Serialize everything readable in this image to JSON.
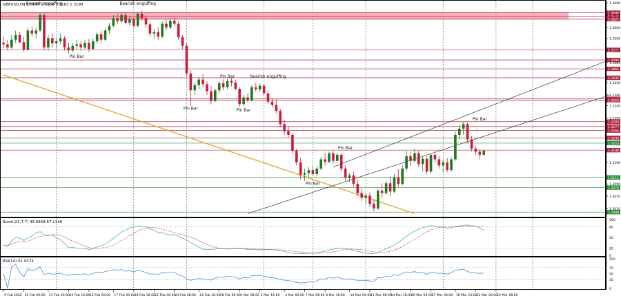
{
  "header": {
    "symbol_info": "GBPUSD,H4  1.3183 1.3203 1.3183 1.3198",
    "stoch_label": "Stoch(21,7,7) 45.0658 67.1146",
    "rsi_label": "RSI(14) 51.9374"
  },
  "colors": {
    "candle_up": "#1f7a1f",
    "candle_down": "#c81e3c",
    "trendline": "#e8a020",
    "channel": "#333333",
    "resistance_zone": "#f4a3b4",
    "stoch_main": "#5fb8b0",
    "stoch_signal": "#d04060",
    "rsi": "#4a8fd8"
  },
  "chart_data": {
    "type": "candlestick",
    "symbol": "GBPUSD",
    "timeframe": "H4",
    "ylim": [
      1.2985,
      1.3685
    ],
    "candles_ohlc": [
      [
        1.355,
        1.357,
        1.3535,
        1.3545
      ],
      [
        1.3545,
        1.356,
        1.3525,
        1.3535
      ],
      [
        1.3535,
        1.3575,
        1.353,
        1.356
      ],
      [
        1.356,
        1.359,
        1.355,
        1.3575
      ],
      [
        1.3575,
        1.3585,
        1.3548,
        1.3552
      ],
      [
        1.3552,
        1.357,
        1.352,
        1.3528
      ],
      [
        1.3528,
        1.36,
        1.3525,
        1.359
      ],
      [
        1.359,
        1.3605,
        1.357,
        1.358
      ],
      [
        1.358,
        1.36,
        1.3565,
        1.359
      ],
      [
        1.359,
        1.365,
        1.3585,
        1.364
      ],
      [
        1.364,
        1.3648,
        1.3525,
        1.3535
      ],
      [
        1.3535,
        1.3575,
        1.3525,
        1.3565
      ],
      [
        1.3565,
        1.358,
        1.3535,
        1.3548
      ],
      [
        1.3548,
        1.3565,
        1.3535,
        1.3555
      ],
      [
        1.3555,
        1.358,
        1.3545,
        1.3565
      ],
      [
        1.3565,
        1.3572,
        1.3525,
        1.3535
      ],
      [
        1.3535,
        1.355,
        1.3515,
        1.3525
      ],
      [
        1.3525,
        1.355,
        1.352,
        1.354
      ],
      [
        1.354,
        1.356,
        1.353,
        1.3545
      ],
      [
        1.3545,
        1.3555,
        1.3525,
        1.3535
      ],
      [
        1.3535,
        1.356,
        1.353,
        1.355
      ],
      [
        1.355,
        1.3562,
        1.352,
        1.353
      ],
      [
        1.353,
        1.3565,
        1.3525,
        1.3555
      ],
      [
        1.3555,
        1.3585,
        1.3548,
        1.3578
      ],
      [
        1.3578,
        1.359,
        1.355,
        1.356
      ],
      [
        1.356,
        1.3598,
        1.3555,
        1.359
      ],
      [
        1.359,
        1.3615,
        1.358,
        1.3605
      ],
      [
        1.3605,
        1.364,
        1.36,
        1.363
      ],
      [
        1.363,
        1.3645,
        1.361,
        1.362
      ],
      [
        1.362,
        1.365,
        1.3615,
        1.364
      ],
      [
        1.364,
        1.3648,
        1.361,
        1.3615
      ],
      [
        1.3615,
        1.3635,
        1.3605,
        1.3628
      ],
      [
        1.3628,
        1.3632,
        1.36,
        1.3605
      ],
      [
        1.3605,
        1.365,
        1.36,
        1.3645
      ],
      [
        1.3645,
        1.3655,
        1.362,
        1.363
      ],
      [
        1.363,
        1.364,
        1.36,
        1.361
      ],
      [
        1.361,
        1.3618,
        1.357,
        1.358
      ],
      [
        1.358,
        1.3595,
        1.3565,
        1.3585
      ],
      [
        1.3585,
        1.36,
        1.356,
        1.357
      ],
      [
        1.357,
        1.362,
        1.3565,
        1.3612
      ],
      [
        1.3612,
        1.3625,
        1.359,
        1.36
      ],
      [
        1.36,
        1.363,
        1.3595,
        1.3622
      ],
      [
        1.3622,
        1.3632,
        1.3605,
        1.3612
      ],
      [
        1.3612,
        1.362,
        1.356,
        1.3568
      ],
      [
        1.3568,
        1.3575,
        1.353,
        1.354
      ],
      [
        1.354,
        1.3548,
        1.344,
        1.345
      ],
      [
        1.345,
        1.346,
        1.3345,
        1.3395
      ],
      [
        1.3395,
        1.342,
        1.338,
        1.3412
      ],
      [
        1.3412,
        1.344,
        1.34,
        1.343
      ],
      [
        1.343,
        1.3448,
        1.3405,
        1.3415
      ],
      [
        1.3415,
        1.3425,
        1.338,
        1.3392
      ],
      [
        1.3392,
        1.341,
        1.335,
        1.336
      ],
      [
        1.336,
        1.34,
        1.3355,
        1.3395
      ],
      [
        1.3395,
        1.3425,
        1.3385,
        1.3418
      ],
      [
        1.3418,
        1.343,
        1.3395,
        1.3405
      ],
      [
        1.3405,
        1.3432,
        1.3398,
        1.3425
      ],
      [
        1.3425,
        1.3435,
        1.3408,
        1.342
      ],
      [
        1.342,
        1.3428,
        1.3395,
        1.34
      ],
      [
        1.34,
        1.3405,
        1.334,
        1.335
      ],
      [
        1.335,
        1.338,
        1.3345,
        1.3372
      ],
      [
        1.3372,
        1.3385,
        1.3355,
        1.3362
      ],
      [
        1.3362,
        1.3412,
        1.3358,
        1.3405
      ],
      [
        1.3405,
        1.342,
        1.339,
        1.3398
      ],
      [
        1.3398,
        1.3418,
        1.339,
        1.341
      ],
      [
        1.341,
        1.3415,
        1.338,
        1.3385
      ],
      [
        1.3385,
        1.3395,
        1.335,
        1.3358
      ],
      [
        1.3358,
        1.337,
        1.334,
        1.3348
      ],
      [
        1.3348,
        1.3365,
        1.332,
        1.3328
      ],
      [
        1.3328,
        1.3335,
        1.3275,
        1.3285
      ],
      [
        1.3285,
        1.3298,
        1.325,
        1.3262
      ],
      [
        1.3262,
        1.3278,
        1.324,
        1.325
      ],
      [
        1.325,
        1.3255,
        1.319,
        1.3198
      ],
      [
        1.3198,
        1.3205,
        1.315,
        1.316
      ],
      [
        1.316,
        1.3175,
        1.3105,
        1.312
      ],
      [
        1.312,
        1.314,
        1.31,
        1.3125
      ],
      [
        1.3125,
        1.3145,
        1.311,
        1.3135
      ],
      [
        1.3135,
        1.315,
        1.3115,
        1.3122
      ],
      [
        1.3122,
        1.3148,
        1.3115,
        1.314
      ],
      [
        1.314,
        1.3178,
        1.3135,
        1.317
      ],
      [
        1.317,
        1.3188,
        1.315,
        1.3162
      ],
      [
        1.3162,
        1.3195,
        1.3158,
        1.319
      ],
      [
        1.319,
        1.3198,
        1.3155,
        1.3165
      ],
      [
        1.3165,
        1.3192,
        1.316,
        1.3185
      ],
      [
        1.3185,
        1.319,
        1.313,
        1.314
      ],
      [
        1.314,
        1.315,
        1.31,
        1.311
      ],
      [
        1.311,
        1.3125,
        1.3095,
        1.3118
      ],
      [
        1.3118,
        1.313,
        1.308,
        1.309
      ],
      [
        1.309,
        1.3102,
        1.305,
        1.306
      ],
      [
        1.306,
        1.3075,
        1.3035,
        1.3045
      ],
      [
        1.3045,
        1.306,
        1.3025,
        1.3052
      ],
      [
        1.3052,
        1.3062,
        1.3015,
        1.3025
      ],
      [
        1.3025,
        1.304,
        1.3,
        1.301
      ],
      [
        1.301,
        1.3075,
        1.3005,
        1.3068
      ],
      [
        1.3068,
        1.3092,
        1.3045,
        1.306
      ],
      [
        1.306,
        1.31,
        1.3055,
        1.3092
      ],
      [
        1.3092,
        1.3115,
        1.305,
        1.3065
      ],
      [
        1.3065,
        1.3122,
        1.306,
        1.3112
      ],
      [
        1.3112,
        1.3138,
        1.308,
        1.309
      ],
      [
        1.309,
        1.315,
        1.3085,
        1.314
      ],
      [
        1.314,
        1.3198,
        1.313,
        1.318
      ],
      [
        1.318,
        1.3195,
        1.315,
        1.3165
      ],
      [
        1.3165,
        1.3205,
        1.316,
        1.319
      ],
      [
        1.319,
        1.3198,
        1.3145,
        1.3155
      ],
      [
        1.3155,
        1.3182,
        1.313,
        1.3172
      ],
      [
        1.3172,
        1.318,
        1.312,
        1.313
      ],
      [
        1.313,
        1.319,
        1.3125,
        1.3185
      ],
      [
        1.3185,
        1.3195,
        1.316,
        1.317
      ],
      [
        1.317,
        1.318,
        1.314,
        1.315
      ],
      [
        1.315,
        1.317,
        1.313,
        1.316
      ],
      [
        1.316,
        1.3175,
        1.3128,
        1.3135
      ],
      [
        1.3135,
        1.3178,
        1.313,
        1.317
      ],
      [
        1.317,
        1.326,
        1.3165,
        1.325
      ],
      [
        1.325,
        1.3282,
        1.3235,
        1.327
      ],
      [
        1.327,
        1.3292,
        1.325,
        1.3285
      ],
      [
        1.3285,
        1.329,
        1.3225,
        1.3235
      ],
      [
        1.3235,
        1.3245,
        1.3195,
        1.3205
      ],
      [
        1.3205,
        1.3215,
        1.3185,
        1.3195
      ],
      [
        1.3195,
        1.3205,
        1.317,
        1.3185
      ],
      [
        1.3185,
        1.3203,
        1.3183,
        1.3198
      ]
    ],
    "levels": [
      {
        "value": 1.3648,
        "label": "1.3648"
      },
      {
        "value": 1.3637,
        "label": "1.3637"
      },
      {
        "value": 1.3627,
        "label": "1.3627"
      },
      {
        "value": 1.3527,
        "label": "1.3527"
      },
      {
        "value": 1.3494,
        "label": "1.3494"
      },
      {
        "value": 1.3465,
        "label": "1.3465"
      },
      {
        "value": 1.3436,
        "label": "1.3436"
      },
      {
        "value": 1.3367,
        "label": "1.3367"
      },
      {
        "value": 1.3363,
        "label": "1.3363"
      },
      {
        "value": 1.3293,
        "label": "1.3293"
      },
      {
        "value": 1.3277,
        "label": "1.3277"
      },
      {
        "value": 1.3264,
        "label": "1.3264"
      },
      {
        "value": 1.324,
        "label": "1.3240"
      },
      {
        "value": 1.3223,
        "label": "1.3223"
      },
      {
        "value": 1.32,
        "label": "1.3198"
      },
      {
        "value": 1.3111,
        "label": "1.3111"
      },
      {
        "value": 1.3078,
        "label": "1.3078"
      },
      {
        "value": 1.2998,
        "label": "1.2998"
      }
    ],
    "green_levels": [
      1.3223,
      1.3198,
      1.3111,
      1.3078,
      1.2998
    ],
    "resistance_zone": [
      1.3627,
      1.365
    ],
    "axis_ticks": [
      {
        "value": 1.368,
        "label": "1.3680"
      },
      {
        "value": 1.364,
        "label": "1.3640"
      },
      {
        "value": 1.36,
        "label": "1.3600"
      },
      {
        "value": 1.3565,
        "label": "1.3565"
      },
      {
        "value": 1.3525,
        "label": "1.3525"
      },
      {
        "value": 1.3485,
        "label": "1.3485"
      },
      {
        "value": 1.342,
        "label": "1.3420"
      },
      {
        "value": 1.338,
        "label": "1.3380"
      },
      {
        "value": 1.3345,
        "label": "1.3345"
      },
      {
        "value": 1.3305,
        "label": "1.3305"
      },
      {
        "value": 1.316,
        "label": "1.3160"
      },
      {
        "value": 1.309,
        "label": "1.3090"
      },
      {
        "value": 1.305,
        "label": "1.3050"
      },
      {
        "value": 1.301,
        "label": "1.3010"
      }
    ],
    "trendline": {
      "start": [
        0,
        1.3445
      ],
      "end": [
        101,
        1.2993
      ]
    },
    "channel_upper": {
      "start": [
        81,
        1.3145
      ],
      "end": [
        149,
        1.3495
      ]
    },
    "channel_lower": {
      "start": [
        60,
        1.2993
      ],
      "end": [
        149,
        1.338
      ]
    },
    "annotations": [
      {
        "text": "Bearish engulfing",
        "idx": 10,
        "price": 1.3669,
        "where": "above"
      },
      {
        "text": "Bearish engulfing",
        "idx": 33,
        "price": 1.3669,
        "where": "above"
      },
      {
        "text": "Pin Bar",
        "idx": 18,
        "price": 1.3515,
        "where": "below"
      },
      {
        "text": "Pin Bar",
        "idx": 46,
        "price": 1.3345,
        "where": "below"
      },
      {
        "text": "Pin Bar",
        "idx": 55,
        "price": 1.3432,
        "where": "above"
      },
      {
        "text": "Bearish engulfing",
        "idx": 65,
        "price": 1.3432,
        "where": "above"
      },
      {
        "text": "Pin Bar",
        "idx": 59,
        "price": 1.334,
        "where": "below"
      },
      {
        "text": "Pin Bar",
        "idx": 76,
        "price": 1.31,
        "where": "below"
      },
      {
        "text": "Pin Bar",
        "idx": 84,
        "price": 1.3198,
        "where": "above"
      },
      {
        "text": "Pin Bar",
        "idx": 117,
        "price": 1.3292,
        "where": "above"
      }
    ],
    "date_labels": [
      {
        "idx": 0,
        "text": "9 Feb 2022"
      },
      {
        "idx": 5,
        "text": "10 Feb 00:00"
      },
      {
        "idx": 11,
        "text": "11 Feb 00:00"
      },
      {
        "idx": 16,
        "text": "14 Feb 16:00"
      },
      {
        "idx": 21,
        "text": "15 Feb 00:00"
      },
      {
        "idx": 27,
        "text": "17 Feb 00:00"
      },
      {
        "idx": 32,
        "text": "18 Feb 16:00"
      },
      {
        "idx": 37,
        "text": "22 Feb 00:00"
      },
      {
        "idx": 42,
        "text": "23 Feb 08:00"
      },
      {
        "idx": 48,
        "text": "24 Feb 16:00"
      },
      {
        "idx": 53,
        "text": "28 Feb 00:00"
      },
      {
        "idx": 58,
        "text": "1 Mar 08:00"
      },
      {
        "idx": 63,
        "text": "2 Mar 16:00"
      },
      {
        "idx": 69,
        "text": "4 Mar 00:00"
      },
      {
        "idx": 74,
        "text": "7 Mar 08:00"
      },
      {
        "idx": 79,
        "text": "8 Mar 16:00"
      },
      {
        "idx": 85,
        "text": "10 Mar 00:00"
      },
      {
        "idx": 90,
        "text": "11 Mar 08:00"
      },
      {
        "idx": 95,
        "text": "14 Mar 16:00"
      },
      {
        "idx": 100,
        "text": "16 Mar 00:00"
      },
      {
        "idx": 105,
        "text": "17 Mar 08:00"
      },
      {
        "idx": 111,
        "text": "18 Mar 16:00"
      },
      {
        "idx": 116,
        "text": "22 Mar 00:00"
      },
      {
        "idx": 121,
        "text": "23 Mar 08:00"
      }
    ],
    "stoch_ticks": [
      {
        "value": 100,
        "label": "100"
      },
      {
        "value": 80,
        "label": "80"
      },
      {
        "value": 50,
        "label": "50"
      },
      {
        "value": 20,
        "label": "20"
      },
      {
        "value": 0,
        "label": "0"
      }
    ],
    "rsi_ticks": [
      {
        "value": 100,
        "label": "100"
      },
      {
        "value": 70,
        "label": "70"
      },
      {
        "value": 50,
        "label": "50"
      },
      {
        "value": 30,
        "label": "30"
      },
      {
        "value": 0,
        "label": "0"
      }
    ]
  }
}
